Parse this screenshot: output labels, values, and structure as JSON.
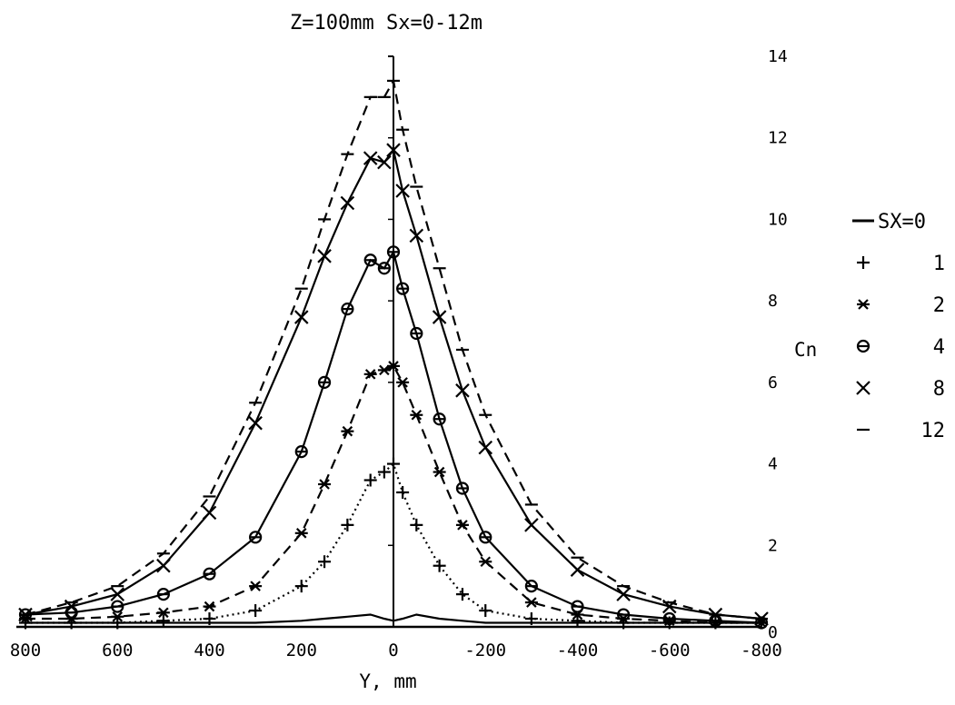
{
  "chart_data": {
    "type": "line",
    "title": "Z=100mm Sx=0-12m",
    "xlabel": "Y, mm",
    "ylabel": "Cn",
    "xlim": [
      800,
      -800
    ],
    "ylim": [
      0,
      14
    ],
    "x_ticks": [
      "800",
      "600",
      "400",
      "200",
      "0",
      "-200",
      "-400",
      "-600",
      "-800"
    ],
    "y_ticks": [
      "0",
      "2",
      "4",
      "6",
      "8",
      "10",
      "12",
      "14"
    ],
    "grid": false,
    "legend_position": "right",
    "x": [
      800,
      700,
      600,
      500,
      400,
      300,
      200,
      150,
      100,
      50,
      20,
      0,
      -20,
      -50,
      -100,
      -150,
      -200,
      -300,
      -400,
      -500,
      -600,
      -700,
      -800
    ],
    "series": [
      {
        "name": "SX=0",
        "marker": "none",
        "line": "solid",
        "y": [
          0.1,
          0.1,
          0.1,
          0.1,
          0.1,
          0.1,
          0.15,
          0.2,
          0.25,
          0.3,
          0.2,
          0.15,
          0.2,
          0.3,
          0.2,
          0.15,
          0.1,
          0.1,
          0.1,
          0.1,
          0.1,
          0.1,
          0.1
        ]
      },
      {
        "name": "1",
        "marker": "plus",
        "line": "dotted",
        "y": [
          0.1,
          0.1,
          0.1,
          0.15,
          0.2,
          0.4,
          1.0,
          1.6,
          2.5,
          3.6,
          3.8,
          4.0,
          3.3,
          2.5,
          1.5,
          0.8,
          0.4,
          0.2,
          0.15,
          0.1,
          0.1,
          0.1,
          0.1
        ]
      },
      {
        "name": "2",
        "marker": "asterisk",
        "line": "dashed",
        "y": [
          0.2,
          0.2,
          0.25,
          0.35,
          0.5,
          1.0,
          2.3,
          3.5,
          4.8,
          6.2,
          6.3,
          6.4,
          6.0,
          5.2,
          3.8,
          2.5,
          1.6,
          0.6,
          0.3,
          0.2,
          0.15,
          0.1,
          0.1
        ]
      },
      {
        "name": "4",
        "marker": "circle",
        "line": "solid",
        "y": [
          0.3,
          0.35,
          0.5,
          0.8,
          1.3,
          2.2,
          4.3,
          6.0,
          7.8,
          9.0,
          8.8,
          9.2,
          8.3,
          7.2,
          5.1,
          3.4,
          2.2,
          1.0,
          0.5,
          0.3,
          0.2,
          0.15,
          0.1
        ]
      },
      {
        "name": "8",
        "marker": "x",
        "line": "solid",
        "y": [
          0.3,
          0.5,
          0.8,
          1.5,
          2.8,
          5.0,
          7.6,
          9.1,
          10.4,
          11.5,
          11.4,
          11.7,
          10.7,
          9.6,
          7.6,
          5.8,
          4.4,
          2.5,
          1.4,
          0.8,
          0.5,
          0.3,
          0.2
        ]
      },
      {
        "name": "12",
        "marker": "dash",
        "line": "dashed",
        "y": [
          0.3,
          0.6,
          1.0,
          1.8,
          3.2,
          5.5,
          8.3,
          10.0,
          11.6,
          13.0,
          13.0,
          13.4,
          12.2,
          10.8,
          8.8,
          6.8,
          5.2,
          3.0,
          1.7,
          1.0,
          0.6,
          0.3,
          0.2
        ]
      }
    ]
  }
}
